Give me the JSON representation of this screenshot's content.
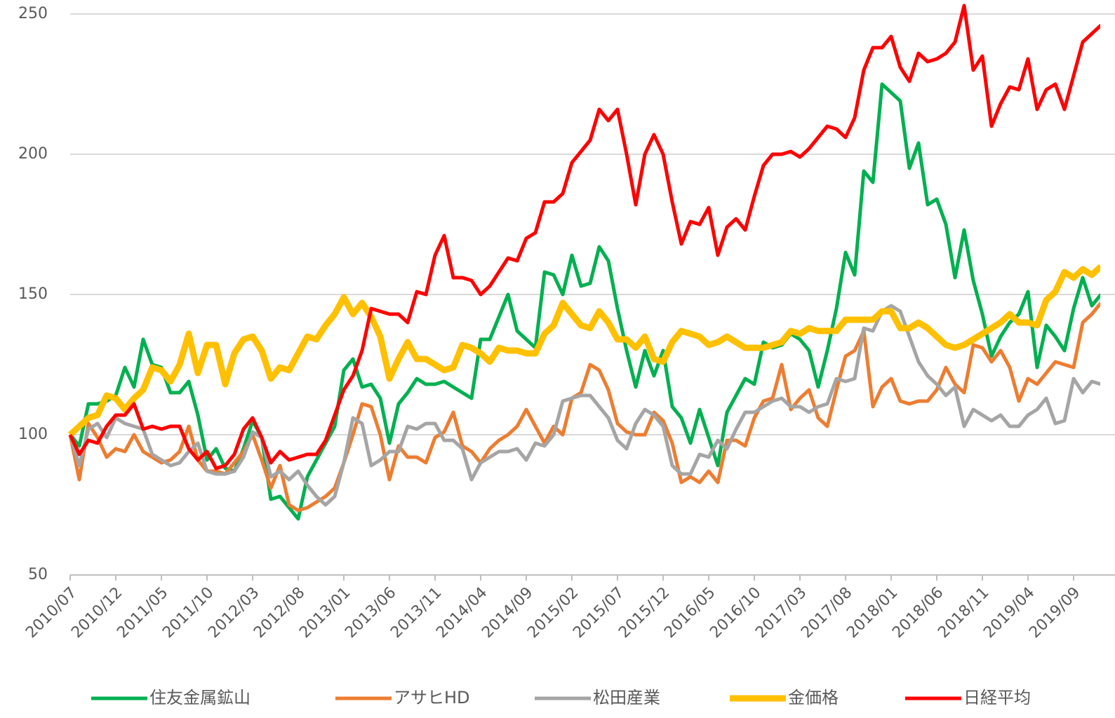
{
  "chart_data": {
    "type": "line",
    "categories": [
      "2010/07",
      null,
      null,
      null,
      null,
      "2010/12",
      null,
      null,
      null,
      null,
      "2011/05",
      null,
      null,
      null,
      null,
      "2011/10",
      null,
      null,
      null,
      null,
      "2012/03",
      null,
      null,
      null,
      null,
      "2012/08",
      null,
      null,
      null,
      null,
      "2013/01",
      null,
      null,
      null,
      null,
      "2013/06",
      null,
      null,
      null,
      null,
      "2013/11",
      null,
      null,
      null,
      null,
      "2014/04",
      null,
      null,
      null,
      null,
      "2014/09",
      null,
      null,
      null,
      null,
      "2015/02",
      null,
      null,
      null,
      null,
      "2015/07",
      null,
      null,
      null,
      null,
      "2015/12",
      null,
      null,
      null,
      null,
      "2016/05",
      null,
      null,
      null,
      null,
      "2016/10",
      null,
      null,
      null,
      null,
      "2017/03",
      null,
      null,
      null,
      null,
      "2017/08",
      null,
      null,
      null,
      null,
      "2018/01",
      null,
      null,
      null,
      null,
      "2018/06",
      null,
      null,
      null,
      null,
      "2018/11",
      null,
      null,
      null,
      null,
      "2019/04",
      null,
      null,
      null,
      null,
      "2019/09",
      null,
      null,
      null
    ],
    "ylim": [
      50,
      250
    ],
    "yticks": [
      50,
      100,
      150,
      200,
      250
    ],
    "grid": true,
    "series": [
      {
        "name": "住友金属鉱山",
        "color": "#00b050",
        "values": [
          100,
          96,
          111,
          111,
          112,
          114,
          124,
          117,
          134,
          125,
          124,
          115,
          115,
          119,
          107,
          91,
          95,
          88,
          87,
          95,
          105,
          99,
          77,
          78,
          74,
          70,
          85,
          91,
          97,
          103,
          123,
          127,
          117,
          118,
          113,
          97,
          111,
          115,
          120,
          118,
          118,
          119,
          117,
          115,
          113,
          134,
          134,
          142,
          150,
          137,
          134,
          131,
          158,
          157,
          150,
          164,
          153,
          154,
          167,
          162,
          145,
          130,
          117,
          130,
          121,
          130,
          110,
          106,
          97,
          109,
          99,
          89,
          108,
          114,
          120,
          118,
          133,
          131,
          132,
          136,
          134,
          130,
          117,
          130,
          145,
          165,
          157,
          194,
          190,
          225,
          222,
          219,
          195,
          204,
          182,
          184,
          175,
          156,
          173,
          155,
          143,
          128,
          135,
          140,
          143,
          151,
          124,
          139,
          135,
          130,
          145,
          156,
          146,
          150
        ]
      },
      {
        "name": "アサヒHD",
        "color": "#ed7d31",
        "values": [
          100,
          84,
          104,
          99,
          92,
          95,
          94,
          100,
          94,
          92,
          90,
          91,
          94,
          103,
          91,
          87,
          87,
          86,
          90,
          94,
          100,
          91,
          81,
          89,
          75,
          73,
          74,
          76,
          78,
          81,
          90,
          100,
          111,
          110,
          100,
          84,
          96,
          92,
          92,
          90,
          99,
          101,
          108,
          96,
          94,
          90,
          95,
          98,
          100,
          103,
          109,
          103,
          97,
          103,
          100,
          113,
          115,
          125,
          123,
          116,
          104,
          101,
          100,
          100,
          108,
          105,
          97,
          83,
          85,
          83,
          87,
          83,
          98,
          98,
          96,
          106,
          112,
          113,
          125,
          109,
          113,
          116,
          106,
          103,
          116,
          128,
          130,
          137,
          110,
          117,
          120,
          112,
          111,
          112,
          112,
          116,
          124,
          118,
          115,
          132,
          131,
          126,
          130,
          124,
          112,
          120,
          118,
          122,
          126,
          125,
          124,
          140,
          143,
          147
        ]
      },
      {
        "name": "松田産業",
        "color": "#a5a5a5",
        "values": [
          100,
          89,
          102,
          104,
          99,
          106,
          104,
          103,
          102,
          93,
          91,
          89,
          90,
          94,
          97,
          87,
          86,
          86,
          87,
          92,
          101,
          99,
          85,
          87,
          84,
          87,
          82,
          78,
          75,
          78,
          90,
          106,
          104,
          89,
          91,
          94,
          94,
          103,
          102,
          104,
          104,
          98,
          98,
          95,
          84,
          90,
          92,
          94,
          94,
          95,
          91,
          97,
          96,
          100,
          112,
          113,
          114,
          114,
          110,
          106,
          98,
          95,
          104,
          109,
          107,
          103,
          89,
          86,
          86,
          93,
          92,
          98,
          95,
          102,
          108,
          108,
          110,
          112,
          113,
          110,
          110,
          108,
          110,
          111,
          120,
          119,
          120,
          138,
          137,
          144,
          146,
          144,
          135,
          126,
          121,
          118,
          114,
          117,
          103,
          109,
          107,
          105,
          107,
          103,
          103,
          107,
          109,
          113,
          104,
          105,
          120,
          115,
          119,
          118
        ]
      },
      {
        "name": "金価格",
        "color": "#ffc000",
        "values": [
          100,
          103,
          106,
          107,
          114,
          113,
          109,
          113,
          116,
          124,
          123,
          119,
          125,
          136,
          122,
          132,
          132,
          118,
          129,
          134,
          135,
          130,
          120,
          124,
          123,
          129,
          135,
          134,
          139,
          143,
          149,
          143,
          147,
          142,
          135,
          120,
          127,
          133,
          127,
          127,
          125,
          123,
          124,
          132,
          131,
          129,
          126,
          131,
          130,
          130,
          129,
          129,
          136,
          139,
          147,
          143,
          139,
          138,
          144,
          140,
          134,
          134,
          131,
          135,
          127,
          126,
          133,
          137,
          136,
          135,
          132,
          133,
          135,
          133,
          131,
          131,
          131,
          132,
          133,
          137,
          136,
          138,
          137,
          137,
          137,
          141,
          141,
          141,
          141,
          144,
          144,
          138,
          138,
          140,
          138,
          135,
          132,
          131,
          132,
          134,
          136,
          138,
          140,
          143,
          140,
          140,
          139,
          148,
          151,
          158,
          156,
          159,
          157,
          160
        ]
      },
      {
        "name": "日経平均",
        "color": "#ff0000",
        "values": [
          100,
          93,
          98,
          97,
          103,
          107,
          107,
          111,
          102,
          103,
          102,
          103,
          103,
          95,
          91,
          94,
          88,
          89,
          93,
          102,
          106,
          99,
          90,
          94,
          91,
          92,
          93,
          93,
          98,
          107,
          116,
          121,
          130,
          145,
          144,
          143,
          143,
          140,
          151,
          150,
          164,
          171,
          156,
          156,
          155,
          150,
          153,
          158,
          163,
          162,
          170,
          172,
          183,
          183,
          186,
          197,
          201,
          205,
          216,
          212,
          216,
          200,
          182,
          200,
          207,
          200,
          183,
          168,
          176,
          175,
          181,
          164,
          174,
          177,
          173,
          185,
          196,
          200,
          200,
          201,
          199,
          202,
          206,
          210,
          209,
          206,
          213,
          230,
          238,
          238,
          242,
          231,
          226,
          236,
          233,
          234,
          236,
          240,
          253,
          230,
          235,
          210,
          218,
          224,
          223,
          234,
          216,
          223,
          225,
          216,
          228,
          240,
          243,
          246
        ]
      }
    ]
  }
}
